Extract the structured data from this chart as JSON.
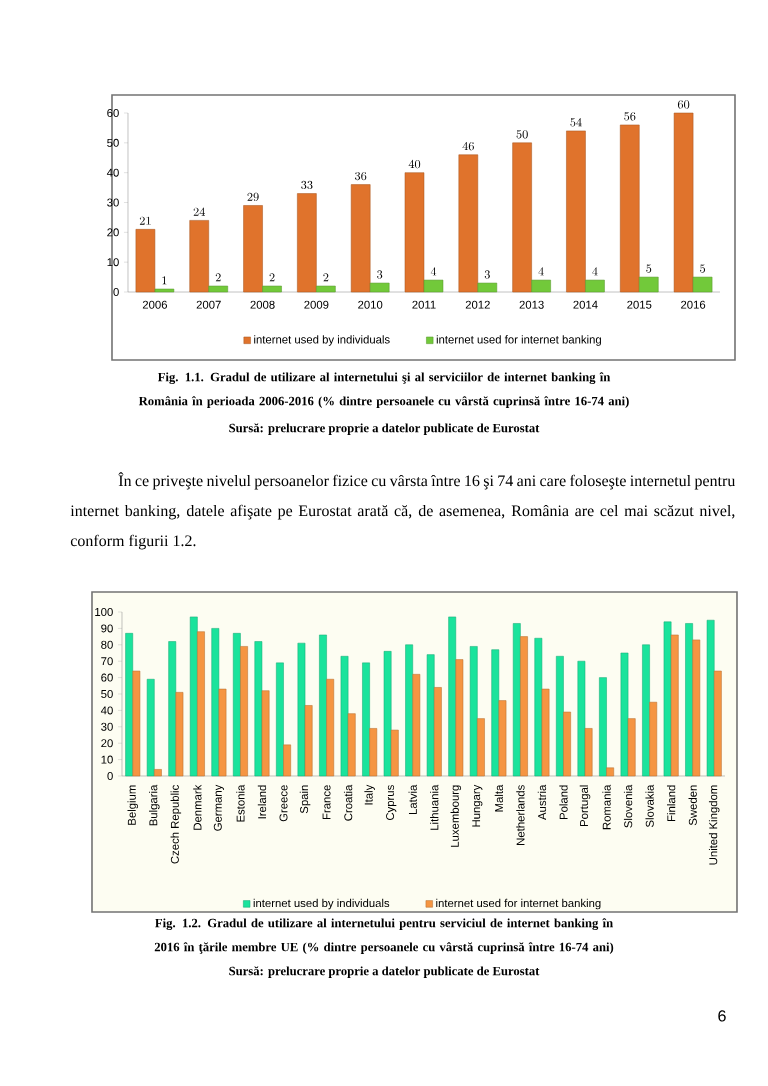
{
  "chart_data": [
    {
      "type": "bar",
      "title": "Fig. 1.1. Gradul de utilizare al internetului şi al serviciilor de internet banking în România în perioada 2006-2016 (% dintre persoanele cu vârstă cuprinsă între 16-74 ani)",
      "categories": [
        "2006",
        "2007",
        "2008",
        "2009",
        "2010",
        "2011",
        "2012",
        "2013",
        "2014",
        "2015",
        "2016"
      ],
      "series": [
        {
          "name": "internet used by individuals",
          "color": "#e0732c",
          "values": [
            21,
            24,
            29,
            33,
            36,
            40,
            46,
            50,
            54,
            56,
            60
          ]
        },
        {
          "name": "internet used for internet banking",
          "color": "#72c93a",
          "values": [
            1,
            2,
            2,
            2,
            3,
            4,
            3,
            4,
            4,
            5,
            5
          ]
        }
      ],
      "ylim": [
        0,
        60
      ],
      "yticks": [
        0,
        10,
        20,
        30,
        40,
        50,
        60
      ],
      "data_labels": true,
      "legend": "bottom",
      "annotations": [
        "Sursă: prelucrare proprie a datelor publicate de Eurostat",
        "În ce priveşte nivelul persoanelor fizice cu vârsta între 16 şi 74 ani care foloseşte internetul pentru internet banking, datele afişate pe Eurostat arată că, de asemenea, România are cel mai scăzut nivel, conform figurii 1.2."
      ]
    },
    {
      "type": "bar",
      "title": "Fig. 1.2. Gradul de utilizare al internetului pentru serviciul de internet banking în 2016 în ţările membre UE (% dintre persoanele cu vârstă cuprinsă între 16-74 ani)",
      "categories": [
        "Belgium",
        "Bulgaria",
        "Czech Republic",
        "Denmark",
        "Germany",
        "Estonia",
        "Ireland",
        "Greece",
        "Spain",
        "France",
        "Croatia",
        "Italy",
        "Cyprus",
        "Latvia",
        "Lithuania",
        "Luxembourg",
        "Hungary",
        "Malta",
        "Netherlands",
        "Austria",
        "Poland",
        "Portugal",
        "Romania",
        "Slovenia",
        "Slovakia",
        "Finland",
        "Sweden",
        "United Kingdom"
      ],
      "series": [
        {
          "name": "internet used by individuals",
          "color": "#1ae39c",
          "values": [
            87,
            59,
            82,
            97,
            90,
            87,
            82,
            69,
            81,
            86,
            73,
            69,
            76,
            80,
            74,
            97,
            79,
            77,
            93,
            84,
            73,
            70,
            60,
            75,
            80,
            94,
            93,
            95
          ]
        },
        {
          "name": "internet used for internet banking",
          "color": "#f59542",
          "values": [
            64,
            4,
            51,
            88,
            53,
            79,
            52,
            19,
            43,
            59,
            38,
            29,
            28,
            62,
            54,
            71,
            35,
            46,
            85,
            53,
            39,
            29,
            5,
            35,
            45,
            86,
            83,
            64
          ]
        }
      ],
      "ylim": [
        0,
        100
      ],
      "yticks": [
        0,
        10,
        20,
        30,
        40,
        50,
        60,
        70,
        80,
        90,
        100
      ],
      "legend": "bottom",
      "annotations": [
        "Sursă: prelucrare proprie a datelor publicate de Eurostat",
        "6"
      ]
    }
  ]
}
